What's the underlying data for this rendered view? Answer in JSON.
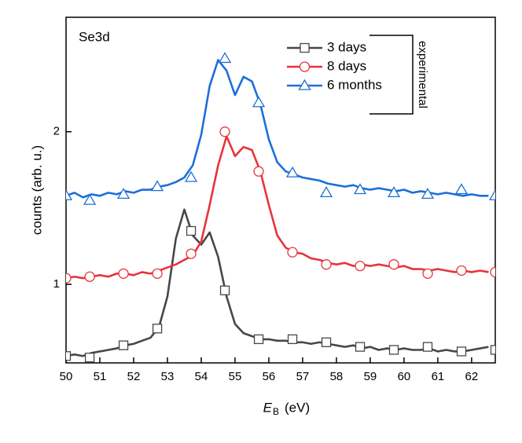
{
  "chart_data": {
    "type": "line",
    "annotation": "Se3d",
    "xlabel_parts": [
      "E",
      "B",
      "(eV)"
    ],
    "ylabel": "counts (arb. u.)",
    "legend_group_label": "experimental",
    "legend_loc": "upper right",
    "xlim": [
      50,
      62.7
    ],
    "ylim": [
      0.485,
      2.75
    ],
    "xticks": [
      50,
      51,
      52,
      53,
      54,
      55,
      56,
      57,
      58,
      59,
      60,
      61,
      62
    ],
    "yticks": [
      1,
      2
    ],
    "x": [
      50,
      50.25,
      50.5,
      50.75,
      51,
      51.25,
      51.5,
      51.75,
      52,
      52.25,
      52.5,
      52.75,
      53,
      53.25,
      53.5,
      53.75,
      54,
      54.25,
      54.5,
      54.75,
      55,
      55.25,
      55.5,
      55.75,
      56,
      56.25,
      56.5,
      56.75,
      57,
      57.25,
      57.5,
      57.75,
      58,
      58.25,
      58.5,
      58.75,
      59,
      59.25,
      59.5,
      59.75,
      60,
      60.25,
      60.5,
      60.75,
      61,
      61.25,
      61.5,
      61.75,
      62,
      62.25,
      62.5
    ],
    "marker_x": [
      50,
      50.7,
      51.7,
      52.7,
      53.7,
      54.7,
      55.7,
      56.7,
      57.7,
      58.7,
      59.7,
      60.7,
      61.7,
      62.7
    ],
    "series": [
      {
        "name": "3 days",
        "color": "#474747",
        "marker": "square",
        "values": [
          0.53,
          0.54,
          0.53,
          0.55,
          0.56,
          0.57,
          0.58,
          0.6,
          0.61,
          0.63,
          0.65,
          0.72,
          0.92,
          1.3,
          1.49,
          1.32,
          1.26,
          1.34,
          1.18,
          0.92,
          0.74,
          0.68,
          0.66,
          0.64,
          0.64,
          0.63,
          0.63,
          0.62,
          0.62,
          0.61,
          0.62,
          0.61,
          0.6,
          0.59,
          0.6,
          0.58,
          0.59,
          0.57,
          0.58,
          0.57,
          0.58,
          0.57,
          0.57,
          0.58,
          0.56,
          0.57,
          0.56,
          0.56,
          0.57,
          0.58,
          0.59
        ],
        "marker_values": [
          0.53,
          0.52,
          0.6,
          0.71,
          1.35,
          0.96,
          0.64,
          0.64,
          0.62,
          0.59,
          0.57,
          0.59,
          0.56,
          0.57
        ]
      },
      {
        "name": "8 days",
        "color": "#e8333c",
        "marker": "circle",
        "values": [
          1.04,
          1.05,
          1.04,
          1.05,
          1.06,
          1.05,
          1.07,
          1.07,
          1.06,
          1.08,
          1.07,
          1.09,
          1.11,
          1.13,
          1.16,
          1.19,
          1.28,
          1.52,
          1.78,
          1.97,
          1.84,
          1.9,
          1.88,
          1.74,
          1.52,
          1.32,
          1.24,
          1.21,
          1.2,
          1.17,
          1.16,
          1.14,
          1.13,
          1.14,
          1.12,
          1.13,
          1.12,
          1.13,
          1.12,
          1.11,
          1.12,
          1.1,
          1.1,
          1.09,
          1.1,
          1.09,
          1.08,
          1.09,
          1.08,
          1.09,
          1.08
        ],
        "marker_values": [
          1.04,
          1.05,
          1.07,
          1.07,
          1.2,
          2.0,
          1.74,
          1.21,
          1.13,
          1.12,
          1.13,
          1.07,
          1.09,
          1.08
        ]
      },
      {
        "name": "6 months",
        "color": "#1d6fd8",
        "marker": "triangle",
        "values": [
          1.58,
          1.6,
          1.57,
          1.59,
          1.58,
          1.6,
          1.59,
          1.61,
          1.6,
          1.62,
          1.62,
          1.64,
          1.65,
          1.67,
          1.7,
          1.78,
          1.98,
          2.3,
          2.47,
          2.4,
          2.24,
          2.36,
          2.33,
          2.18,
          1.95,
          1.8,
          1.74,
          1.72,
          1.7,
          1.69,
          1.68,
          1.66,
          1.65,
          1.64,
          1.65,
          1.63,
          1.62,
          1.63,
          1.62,
          1.61,
          1.62,
          1.6,
          1.61,
          1.6,
          1.59,
          1.6,
          1.59,
          1.58,
          1.59,
          1.58,
          1.58
        ],
        "marker_values": [
          1.58,
          1.55,
          1.59,
          1.64,
          1.7,
          2.48,
          2.19,
          1.73,
          1.6,
          1.62,
          1.6,
          1.59,
          1.62,
          1.58
        ]
      }
    ]
  }
}
